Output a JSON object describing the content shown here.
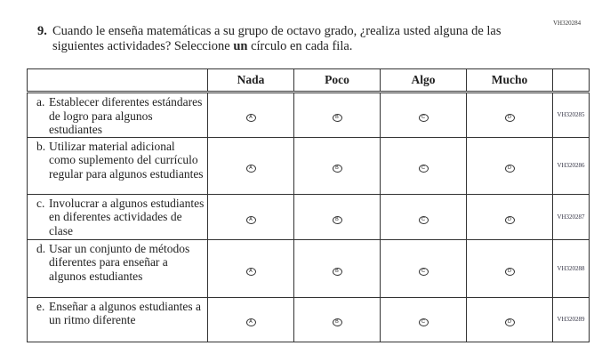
{
  "top_code": "VH320284",
  "question": {
    "number": "9.",
    "text_before": "Cuando le enseña matemáticas a su grupo de octavo grado, ¿realiza usted alguna de las siguientes actividades? Seleccione ",
    "bold": "un",
    "text_after": " círculo en cada fila."
  },
  "columns": [
    "Nada",
    "Poco",
    "Algo",
    "Mucho"
  ],
  "bubbles": [
    "A",
    "B",
    "C",
    "D"
  ],
  "rows": [
    {
      "letter": "a.",
      "text": "Establecer diferentes estándares de logro para algunos estudiantes",
      "code": "VH320285",
      "h": 50
    },
    {
      "letter": "b.",
      "text": "Utilizar material adicional como suplemento del currículo regular para algunos estudiantes",
      "code": "VH320286",
      "h": 64
    },
    {
      "letter": "c.",
      "text": "Involucrar a algunos estudiantes en diferentes actividades de clase",
      "code": "VH320287",
      "h": 51
    },
    {
      "letter": "d.",
      "text": "Usar un conjunto de métodos diferentes para enseñar a algunos estudiantes",
      "code": "VH320288",
      "h": 65
    },
    {
      "letter": "e.",
      "text": "Enseñar a algunos estudiantes a un ritmo diferente",
      "code": "VH320289",
      "h": 50
    }
  ]
}
